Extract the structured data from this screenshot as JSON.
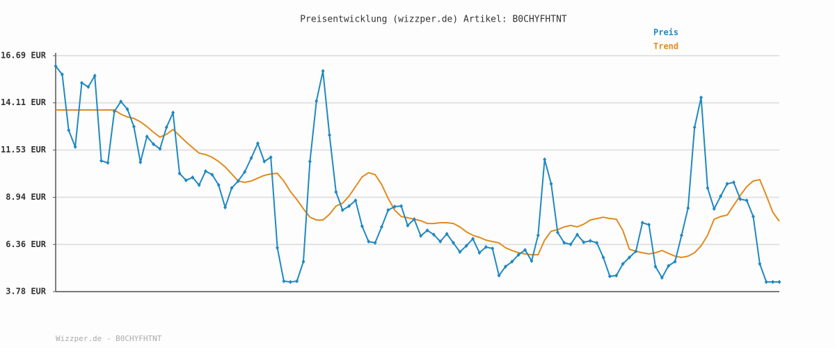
{
  "chart_data": {
    "type": "line",
    "title": "Preisentwicklung (wizzper.de) Artikel: B0CHYFHTNT",
    "footer": "Wizzper.de - B0CHYFHTNT",
    "ylim": [
      3.78,
      16.69
    ],
    "yticks": [
      {
        "value": 3.78,
        "label": "3.78 EUR"
      },
      {
        "value": 6.36,
        "label": "6.36 EUR"
      },
      {
        "value": 8.94,
        "label": "8.94 EUR"
      },
      {
        "value": 11.53,
        "label": "11.53 EUR"
      },
      {
        "value": 14.11,
        "label": "14.11 EUR"
      },
      {
        "value": 16.69,
        "label": "16.69 EUR"
      }
    ],
    "grid": true,
    "legend": "top-right",
    "series": [
      {
        "name": "Preis",
        "color": "#1f88c0",
        "markers": true,
        "values": [
          16.12,
          15.66,
          12.61,
          11.7,
          15.2,
          14.98,
          15.59,
          10.94,
          10.83,
          13.64,
          14.18,
          13.76,
          12.81,
          10.86,
          12.27,
          11.85,
          11.59,
          12.77,
          13.57,
          10.25,
          9.87,
          10.03,
          9.61,
          10.37,
          10.18,
          9.61,
          8.39,
          9.45,
          9.83,
          10.33,
          11.09,
          11.89,
          10.9,
          11.13,
          6.18,
          4.35,
          4.31,
          4.35,
          5.42,
          10.9,
          14.21,
          15.85,
          12.35,
          9.23,
          8.24,
          8.46,
          8.77,
          7.36,
          6.52,
          6.45,
          7.32,
          8.24,
          8.43,
          8.46,
          7.4,
          7.74,
          6.83,
          7.13,
          6.9,
          6.52,
          6.94,
          6.45,
          5.95,
          6.29,
          6.67,
          5.91,
          6.22,
          6.14,
          4.66,
          5.15,
          5.42,
          5.8,
          6.06,
          5.46,
          6.86,
          11.01,
          9.68,
          7.02,
          6.45,
          6.37,
          6.9,
          6.48,
          6.56,
          6.45,
          5.65,
          4.62,
          4.66,
          5.3,
          5.65,
          5.99,
          7.55,
          7.44,
          5.15,
          4.54,
          5.19,
          5.42,
          6.86,
          8.35,
          12.77,
          14.4,
          9.45,
          8.31,
          9.0,
          9.68,
          9.76,
          8.84,
          8.77,
          7.89,
          5.3,
          4.31,
          4.31,
          4.31
        ]
      },
      {
        "name": "Trend",
        "color": "#e08a1e",
        "markers": false,
        "values": [
          13.72,
          13.72,
          13.72,
          13.72,
          13.72,
          13.72,
          13.72,
          13.72,
          13.72,
          13.72,
          13.49,
          13.34,
          13.26,
          13.07,
          12.81,
          12.5,
          12.23,
          12.39,
          12.65,
          12.31,
          11.97,
          11.66,
          11.36,
          11.28,
          11.13,
          10.9,
          10.6,
          10.22,
          9.83,
          9.76,
          9.83,
          9.99,
          10.14,
          10.22,
          10.25,
          9.83,
          9.26,
          8.81,
          8.31,
          7.85,
          7.7,
          7.7,
          8.01,
          8.46,
          8.62,
          9.0,
          9.53,
          10.06,
          10.29,
          10.18,
          9.64,
          8.88,
          8.24,
          7.89,
          7.82,
          7.74,
          7.66,
          7.51,
          7.51,
          7.55,
          7.55,
          7.51,
          7.32,
          7.05,
          6.86,
          6.75,
          6.6,
          6.52,
          6.45,
          6.18,
          6.03,
          5.91,
          5.84,
          5.8,
          5.8,
          6.6,
          7.09,
          7.17,
          7.32,
          7.4,
          7.32,
          7.47,
          7.7,
          7.78,
          7.85,
          7.78,
          7.74,
          7.13,
          6.1,
          5.99,
          5.91,
          5.84,
          5.91,
          6.03,
          5.87,
          5.72,
          5.65,
          5.72,
          5.91,
          6.29,
          6.86,
          7.74,
          7.89,
          7.97,
          8.5,
          9.04,
          9.53,
          9.83,
          9.91,
          9.04,
          8.12,
          7.63
        ]
      }
    ]
  }
}
